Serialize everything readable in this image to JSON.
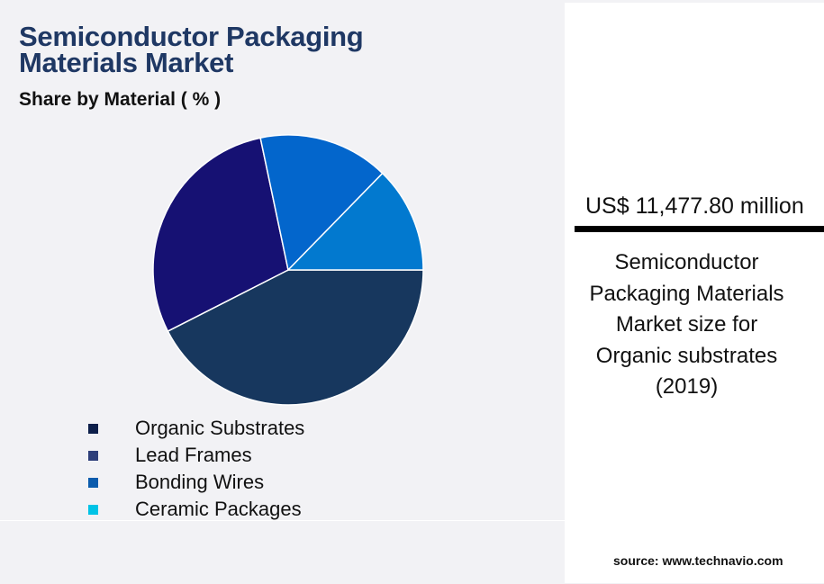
{
  "header": {
    "title_line1": "Semiconductor Packaging",
    "title_line2": "Materials Market",
    "subtitle": "Share by Material ( % )"
  },
  "chart_data": {
    "type": "pie",
    "title": "Semiconductor Packaging Materials Market",
    "subtitle": "Share by Material ( % )",
    "categories": [
      "Organic Substrates",
      "Lead Frames",
      "Bonding Wires",
      "Ceramic Packages"
    ],
    "values": [
      42.5,
      29.2,
      15.6,
      12.7
    ],
    "slice_colors": [
      "#17375e",
      "#161173",
      "#0366cc",
      "#0279cf"
    ],
    "legend_colors": [
      "#0d1f4a",
      "#2e3f7a",
      "#0b5cad",
      "#00c3e6"
    ],
    "start_angle": "3 o'clock, clockwise",
    "legend_placement": "bottom"
  },
  "panel": {
    "value": "US$ 11,477.80 million",
    "description": "Semiconductor Packaging Materials Market size for Organic substrates (2019)",
    "source": "source: www.technavio.com"
  }
}
